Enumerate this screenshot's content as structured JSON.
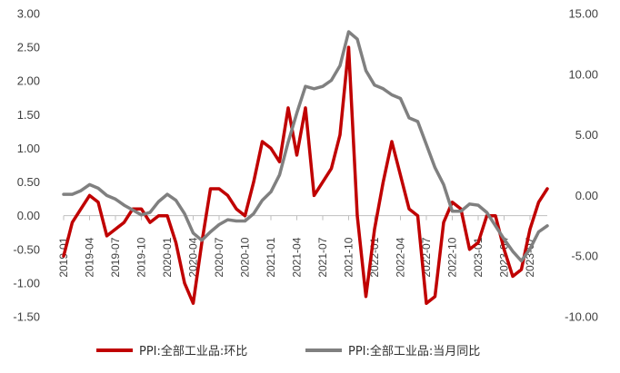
{
  "chart_data": {
    "type": "line",
    "title": "",
    "xlabel": "",
    "ylabel": "",
    "y2label": "",
    "grid": false,
    "legend_position": "bottom",
    "x": [
      "2019-01",
      "2019-02",
      "2019-03",
      "2019-04",
      "2019-05",
      "2019-06",
      "2019-07",
      "2019-08",
      "2019-09",
      "2019-10",
      "2019-11",
      "2019-12",
      "2020-01",
      "2020-02",
      "2020-03",
      "2020-04",
      "2020-05",
      "2020-06",
      "2020-07",
      "2020-08",
      "2020-09",
      "2020-10",
      "2020-11",
      "2020-12",
      "2021-01",
      "2021-02",
      "2021-03",
      "2021-04",
      "2021-05",
      "2021-06",
      "2021-07",
      "2021-08",
      "2021-09",
      "2021-10",
      "2021-11",
      "2021-12",
      "2022-01",
      "2022-02",
      "2022-03",
      "2022-04",
      "2022-05",
      "2022-06",
      "2022-07",
      "2022-08",
      "2022-09",
      "2022-10",
      "2022-11",
      "2022-12",
      "2023-01",
      "2023-02",
      "2023-03",
      "2023-04",
      "2023-05",
      "2023-06",
      "2023-07",
      "2023-08",
      "2023-09"
    ],
    "x_tick_labels": [
      "2019-01",
      "2019-04",
      "2019-07",
      "2019-10",
      "2020-01",
      "2020-04",
      "2020-07",
      "2020-10",
      "2021-01",
      "2021-04",
      "2021-07",
      "2021-10",
      "2022-01",
      "2022-04",
      "2022-07",
      "2022-10",
      "2023-01",
      "2023-04",
      "2023-07"
    ],
    "y_left": {
      "ylim": [
        -1.5,
        3.0
      ],
      "ticks": [
        "-1.50",
        "-1.00",
        "-0.50",
        "0.00",
        "0.50",
        "1.00",
        "1.50",
        "2.00",
        "2.50",
        "3.00"
      ]
    },
    "y_right": {
      "ylim": [
        -10.0,
        15.0
      ],
      "ticks": [
        "-10.00",
        "-5.00",
        "0.00",
        "5.00",
        "10.00",
        "15.00"
      ]
    },
    "series": [
      {
        "name": "PPI:全部工业品:环比",
        "axis": "left",
        "color": "#C00000",
        "values": [
          -0.6,
          -0.1,
          0.1,
          0.3,
          0.2,
          -0.3,
          -0.2,
          -0.1,
          0.1,
          0.1,
          -0.1,
          0.0,
          0.0,
          -0.4,
          -1.0,
          -1.3,
          -0.4,
          0.4,
          0.4,
          0.3,
          0.1,
          0.0,
          0.5,
          1.1,
          1.0,
          0.8,
          1.6,
          0.9,
          1.6,
          0.3,
          0.5,
          0.7,
          1.2,
          2.5,
          0.0,
          -1.2,
          -0.2,
          0.5,
          1.1,
          0.6,
          0.1,
          0.0,
          -1.3,
          -1.2,
          -0.1,
          0.2,
          0.1,
          -0.5,
          -0.4,
          0.0,
          0.0,
          -0.5,
          -0.9,
          -0.8,
          -0.2,
          0.2,
          0.4
        ]
      },
      {
        "name": "PPI:全部工业品:当月同比",
        "axis": "right",
        "color": "#808080",
        "values": [
          0.1,
          0.1,
          0.4,
          0.9,
          0.6,
          0.0,
          -0.3,
          -0.8,
          -1.2,
          -1.6,
          -1.4,
          -0.5,
          0.1,
          -0.4,
          -1.5,
          -3.1,
          -3.7,
          -3.0,
          -2.4,
          -2.0,
          -2.1,
          -2.1,
          -1.5,
          -0.4,
          0.3,
          1.7,
          4.4,
          6.8,
          9.0,
          8.8,
          9.0,
          9.5,
          10.7,
          13.5,
          12.9,
          10.3,
          9.1,
          8.8,
          8.3,
          8.0,
          6.4,
          6.1,
          4.2,
          2.3,
          0.9,
          -1.3,
          -1.3,
          -0.7,
          -0.8,
          -1.4,
          -2.5,
          -3.6,
          -4.6,
          -5.4,
          -4.4,
          -3.0,
          -2.5
        ]
      }
    ]
  }
}
